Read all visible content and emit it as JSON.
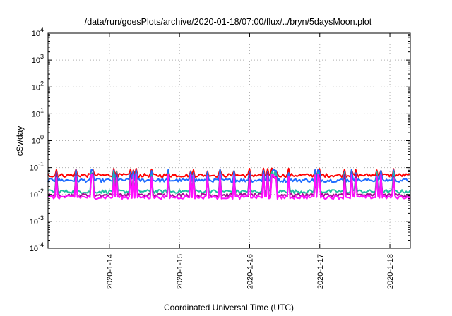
{
  "chart_data": {
    "type": "line",
    "title": "/data/run/goesPlots/archive/2020-01-18/07:00/flux/../bryn/5daysMoon.plot",
    "xlabel": "Coordinated Universal Time (UTC)",
    "ylabel": "cSv/day",
    "yscale": "log",
    "ylim": [
      0.0001,
      10000
    ],
    "yticks": [
      {
        "base": "10",
        "exp": "4",
        "value": 10000
      },
      {
        "base": "10",
        "exp": "3",
        "value": 1000
      },
      {
        "base": "10",
        "exp": "2",
        "value": 100
      },
      {
        "base": "10",
        "exp": "1",
        "value": 10
      },
      {
        "base": "10",
        "exp": "0",
        "value": 1
      },
      {
        "base": "10",
        "exp": "-1",
        "value": 0.1
      },
      {
        "base": "10",
        "exp": "-2",
        "value": 0.01
      },
      {
        "base": "10",
        "exp": "-3",
        "value": 0.001
      },
      {
        "base": "10",
        "exp": "-4",
        "value": 0.0001
      }
    ],
    "xlim": [
      "2020-01-13T03:00",
      "2020-01-18T07:00"
    ],
    "xticks": [
      "2020-1-14",
      "2020-1-15",
      "2020-1-16",
      "2020-1-17",
      "2020-1-18"
    ],
    "grid": true,
    "series": [
      {
        "color": "#ff0000",
        "base": 0.052,
        "spike": 0.095
      },
      {
        "color": "#1e6cff",
        "base": 0.034,
        "spike": 0.09
      },
      {
        "color": "#20c0a0",
        "base": 0.013,
        "spike": 0.07
      },
      {
        "color": "#a01090",
        "base": 0.0095,
        "spike": 0.065
      },
      {
        "color": "#ff10ff",
        "base": 0.008,
        "spike": 0.06
      }
    ]
  }
}
